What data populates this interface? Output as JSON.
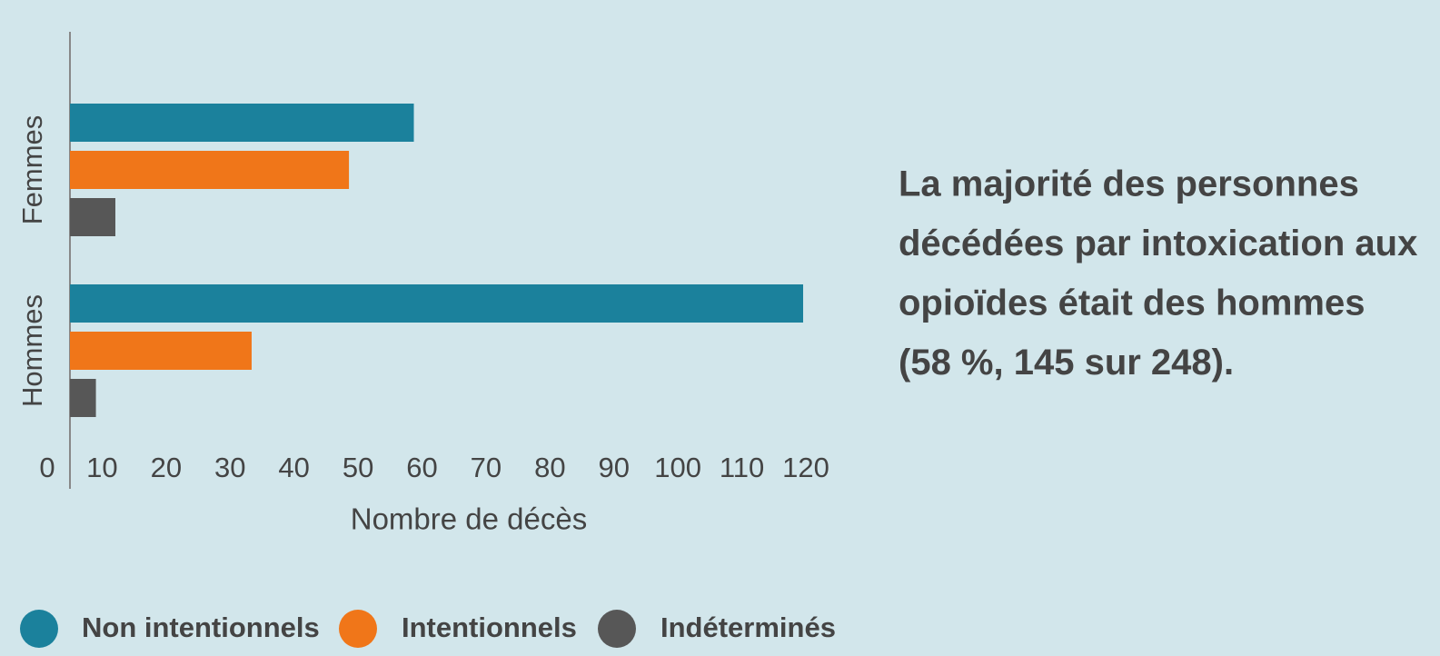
{
  "chart_data": {
    "type": "bar",
    "orientation": "horizontal",
    "categories": [
      "Femmes",
      "Hommes"
    ],
    "series": [
      {
        "name": "Non intentionnels",
        "color": "#1b819c",
        "values": [
          53,
          113
        ]
      },
      {
        "name": "Intentionnels",
        "color": "#f07619",
        "values": [
          43,
          28
        ]
      },
      {
        "name": "Indéterminés",
        "color": "#575757",
        "values": [
          7,
          4
        ]
      }
    ],
    "xlabel": "Nombre de décès",
    "xlim": [
      0,
      120
    ],
    "xticks": [
      0,
      10,
      20,
      30,
      40,
      50,
      60,
      70,
      80,
      90,
      100,
      110,
      120
    ],
    "legend": "bottom",
    "annotation": [
      "La majorité des personnes",
      "décédées par intoxication aux",
      "opioïdes était des hommes",
      "(58 %, 145 sur 248)."
    ]
  }
}
